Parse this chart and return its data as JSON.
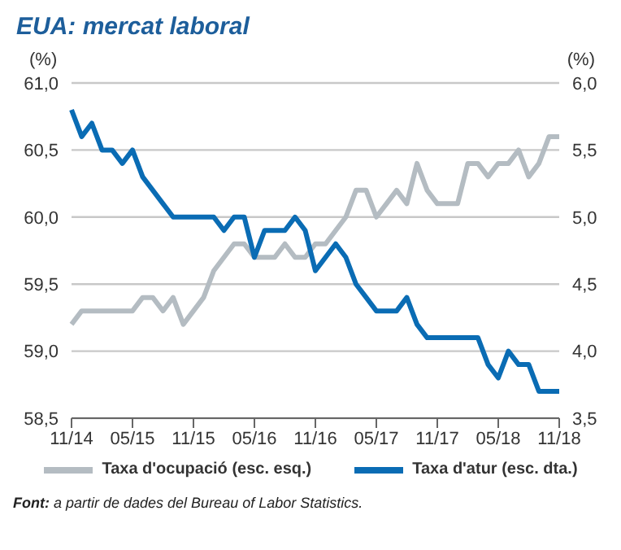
{
  "chart_data": {
    "type": "line",
    "title": "EUA: mercat laboral",
    "ylabel": "(%)",
    "y2label": "(%)",
    "categories": [
      "11/14",
      null,
      null,
      null,
      null,
      null,
      "05/15",
      null,
      null,
      null,
      null,
      null,
      "11/15",
      null,
      null,
      null,
      null,
      null,
      "05/16",
      null,
      null,
      null,
      null,
      null,
      "11/16",
      null,
      null,
      null,
      null,
      null,
      "05/17",
      null,
      null,
      null,
      null,
      null,
      "11/17",
      null,
      null,
      null,
      null,
      null,
      "05/18",
      null,
      null,
      null,
      null,
      null,
      "11/18"
    ],
    "series": [
      {
        "name": "Taxa d'ocupació (esc. esq.)",
        "color": "#b4bcc2",
        "values": [
          59.2,
          59.3,
          59.3,
          59.3,
          59.3,
          59.3,
          59.3,
          59.4,
          59.4,
          59.3,
          59.4,
          59.2,
          59.3,
          59.4,
          59.6,
          59.7,
          59.8,
          59.8,
          59.7,
          59.7,
          59.7,
          59.8,
          59.7,
          59.7,
          59.8,
          59.8,
          59.9,
          60.0,
          60.2,
          60.2,
          60.0,
          60.1,
          60.2,
          60.1,
          60.4,
          60.2,
          60.1,
          60.1,
          60.1,
          60.4,
          60.4,
          60.3,
          60.4,
          60.4,
          60.5,
          60.3,
          60.4,
          60.6,
          60.6
        ]
      },
      {
        "name": "Taxa d'atur (esc. dta.)",
        "color": "#0a6cb4",
        "axis": "y2",
        "values": [
          5.8,
          5.6,
          5.7,
          5.5,
          5.5,
          5.4,
          5.5,
          5.3,
          5.2,
          5.1,
          5.0,
          5.0,
          5.0,
          5.0,
          5.0,
          4.9,
          5.0,
          5.0,
          4.7,
          4.9,
          4.9,
          4.9,
          5.0,
          4.9,
          4.6,
          4.7,
          4.8,
          4.7,
          4.5,
          4.4,
          4.3,
          4.3,
          4.3,
          4.4,
          4.2,
          4.1,
          4.1,
          4.1,
          4.1,
          4.1,
          4.1,
          3.9,
          3.8,
          4.0,
          3.9,
          3.9,
          3.7,
          3.7,
          3.7
        ]
      }
    ],
    "ylim": [
      58.5,
      61.0
    ],
    "yticks": [
      {
        "value": 58.5,
        "label": "58,5"
      },
      {
        "value": 59.0,
        "label": "59,0"
      },
      {
        "value": 59.5,
        "label": "59,5"
      },
      {
        "value": 60.0,
        "label": "60,0"
      },
      {
        "value": 60.5,
        "label": "60,5"
      },
      {
        "value": 61.0,
        "label": "61,0"
      }
    ],
    "y2lim": [
      3.5,
      6.0
    ],
    "y2ticks": [
      {
        "value": 3.5,
        "label": "3,5"
      },
      {
        "value": 4.0,
        "label": "4,0"
      },
      {
        "value": 4.5,
        "label": "4,5"
      },
      {
        "value": 5.0,
        "label": "5,0"
      },
      {
        "value": 5.5,
        "label": "5,5"
      },
      {
        "value": 6.0,
        "label": "6,0"
      }
    ],
    "grid": "y",
    "legend": "bottom",
    "marker": "none",
    "line_style": "solid",
    "annotations": [
      "Font: a partir de dades del Bureau of Labor Statistics."
    ]
  }
}
